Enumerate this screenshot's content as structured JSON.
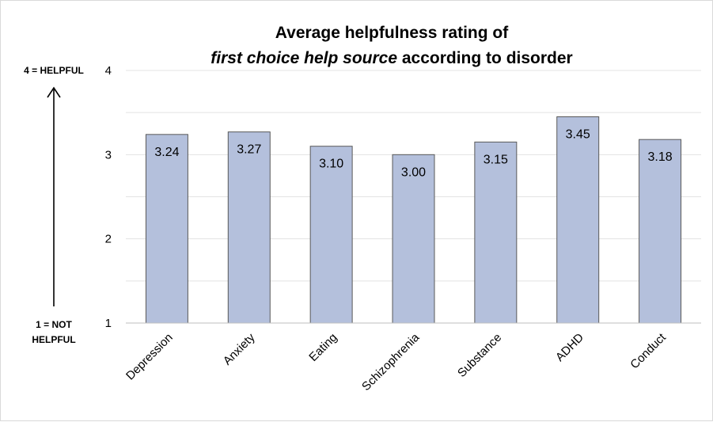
{
  "chart_data": {
    "type": "bar",
    "title_line1": "Average helpfulness rating of",
    "title_line2_italic": "first choice help source",
    "title_line2_rest": " according to disorder",
    "categories": [
      "Depression",
      "Anxiety",
      "Eating",
      "Schizophrenia",
      "Substance",
      "ADHD",
      "Conduct"
    ],
    "values": [
      3.24,
      3.27,
      3.1,
      3.0,
      3.15,
      3.45,
      3.18
    ],
    "value_labels": [
      "3.24",
      "3.27",
      "3.10",
      "3.00",
      "3.15",
      "3.45",
      "3.18"
    ],
    "ylim": [
      1,
      4
    ],
    "yticks": [
      "1",
      "2",
      "3",
      "4"
    ],
    "grid": true,
    "bar_color": "#b4c0dc",
    "bar_edge_color": "#595959",
    "top_scale_label": "4 = HELPFUL",
    "bottom_scale_label_line1": "1 = NOT",
    "bottom_scale_label_line2": "HELPFUL"
  }
}
